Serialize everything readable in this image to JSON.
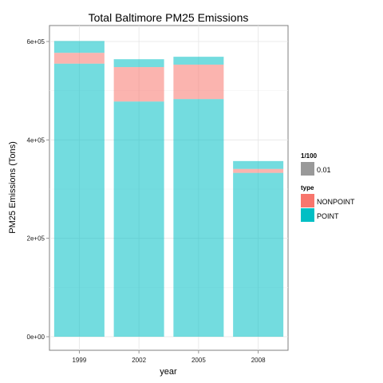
{
  "chart_data": {
    "type": "bar",
    "stacked": true,
    "title": "Total Baltimore PM25 Emissions",
    "xlabel": "year",
    "ylabel": "PM25 Emissions (Tons)",
    "categories": [
      "1999",
      "2002",
      "2005",
      "2008"
    ],
    "ylim": [
      0,
      630000
    ],
    "yticks": [
      0,
      200000,
      400000,
      600000
    ],
    "ytick_labels": [
      "0e+00",
      "2e+05",
      "4e+05",
      "6e+05"
    ],
    "series": [
      {
        "name": "POINT",
        "color": "#00BFC4",
        "values": [
          555000,
          478000,
          483000,
          333000
        ]
      },
      {
        "name": "NONPOINT",
        "color": "#F8766D",
        "values": [
          22000,
          70000,
          70000,
          8000
        ]
      },
      {
        "name": "",
        "color": "#00BFC4",
        "values": [
          24000,
          16000,
          16000,
          16000
        ]
      }
    ],
    "alpha": 0.55,
    "grid": true,
    "legend_position": "right",
    "legends": [
      {
        "title": "1/100",
        "items": [
          {
            "label": "0.01",
            "color": "#999999"
          }
        ]
      },
      {
        "title": "type",
        "items": [
          {
            "label": "NONPOINT",
            "color": "#F8766D"
          },
          {
            "label": "POINT",
            "color": "#00BFC4"
          }
        ]
      }
    ]
  }
}
